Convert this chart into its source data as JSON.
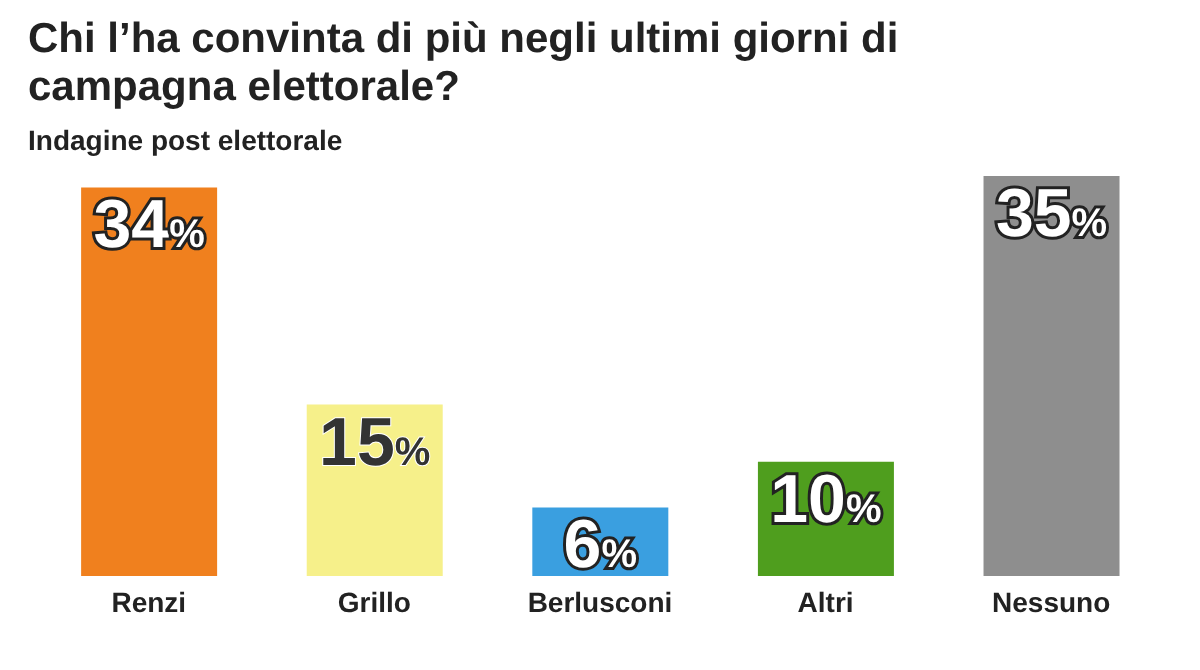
{
  "chart_data": {
    "type": "bar",
    "title": "Chi l’ha convinta di più negli ultimi giorni di campagna elettorale?",
    "subtitle": "Indagine post elettorale",
    "categories": [
      "Renzi",
      "Grillo",
      "Berlusconi",
      "Altri",
      "Nessuno"
    ],
    "values": [
      34,
      15,
      6,
      10,
      35
    ],
    "colors": [
      "#f0801e",
      "#f6f08a",
      "#3a9fe0",
      "#4f9e1e",
      "#8e8e8e"
    ],
    "value_labels": [
      "34%",
      "15%",
      "6%",
      "10%",
      "35%"
    ]
  }
}
